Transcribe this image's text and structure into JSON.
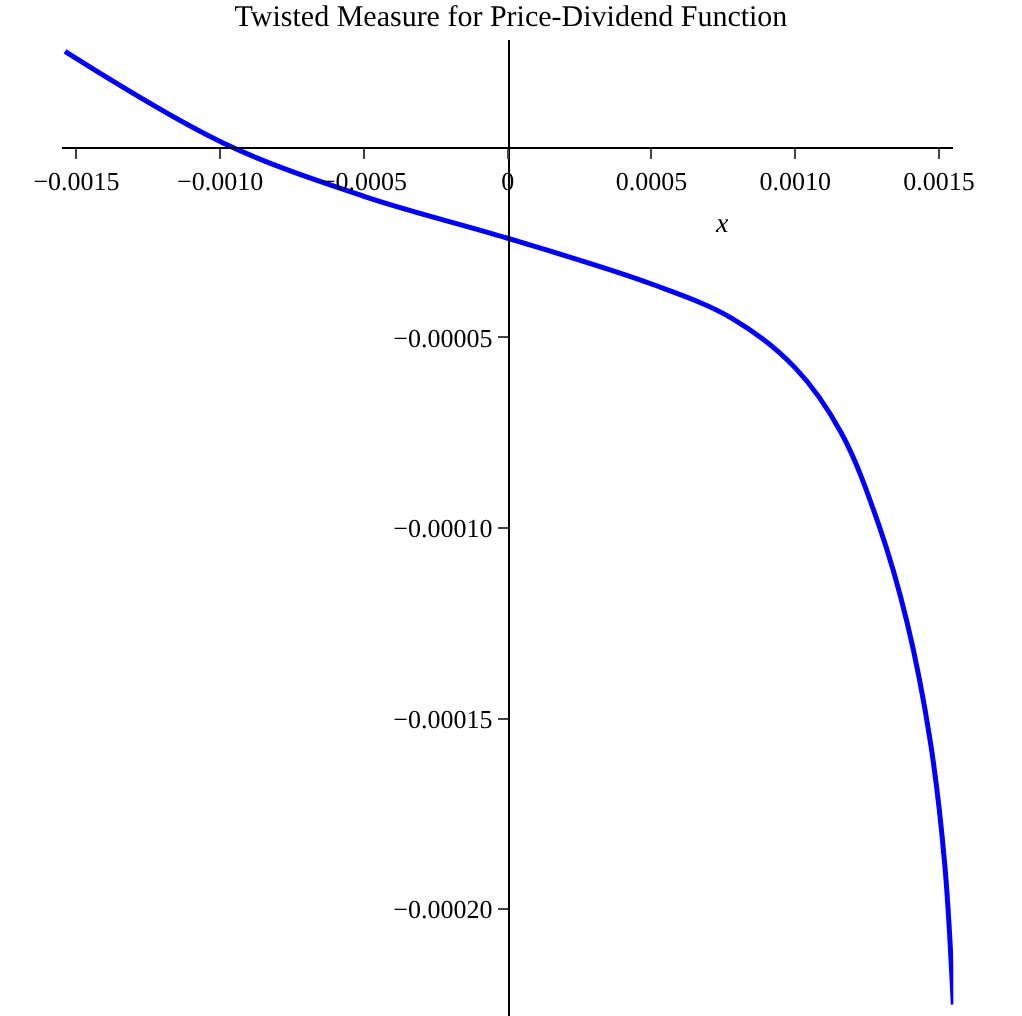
{
  "chart_data": {
    "type": "line",
    "title": "Twisted Measure for Price-Dividend Function",
    "xlabel": "x",
    "x": [
      -0.00154,
      -0.00099,
      -0.0005,
      0,
      0.0005,
      0.00078,
      0.001,
      0.00116,
      0.00129,
      0.00139,
      0.00147,
      0.00152,
      0.00155
    ],
    "series": [
      {
        "color": "#0000ff",
        "values": [
          2.5e-05,
          1e-06,
          -1.3e-05,
          -2.4e-05,
          -3.6e-05,
          -4.5e-05,
          -5.8e-05,
          -7.5e-05,
          -9.9e-05,
          -0.000125,
          -0.000156,
          -0.000188,
          -0.000225
        ]
      }
    ],
    "xlim": [
      -0.00155,
      0.00155
    ],
    "ylim": [
      -0.000228,
      2.8e-05
    ],
    "xticks": [
      -0.0015,
      {
        "value": -0.001,
        "label": "−0.0010"
      },
      -0.0005,
      0,
      0.0005,
      {
        "value": 0.001,
        "label": "0.0010"
      },
      0.0015
    ],
    "yticks": [
      {
        "value": -0.0002,
        "label": "−0.00020"
      },
      -0.00015,
      {
        "value": -0.0001,
        "label": "−0.00010"
      },
      {
        "value": -5e-05,
        "label": "−0.00005"
      }
    ],
    "line_style": "solid",
    "marker": "none"
  }
}
